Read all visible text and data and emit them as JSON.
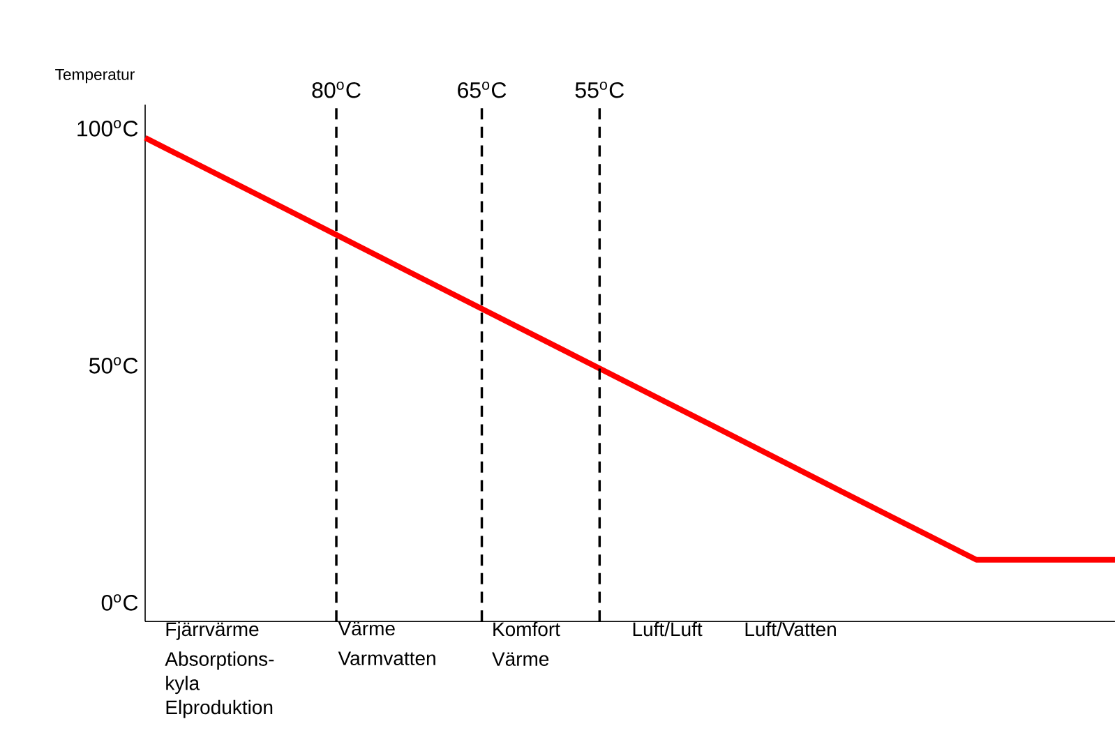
{
  "chart_data": {
    "type": "line",
    "ylabel": "Temperatur",
    "categories": [
      null,
      null,
      null,
      null,
      null,
      null,
      null,
      null
    ],
    "series": [
      {
        "color": "#ff0000",
        "values": [
          98,
          83.2,
          68.3,
          53.5,
          38.7,
          23.8,
          9,
          9
        ]
      }
    ],
    "ylim": [
      -4,
      105
    ],
    "yticks": [
      {
        "value": 0,
        "label": "0$^{o}$C"
      },
      {
        "value": 50,
        "label": "50$^{o}$C"
      },
      {
        "value": 100,
        "label": "100$^{o}$C"
      }
    ],
    "tick_labels": "y",
    "grid": false,
    "marker": "none",
    "line_style": "solid",
    "annotations": [
      "Fjärrvärme Absorptions-kyla Elproduktion",
      "Värme Varmvatten",
      "Komfort Värme",
      "Luft/Luft",
      "Luft/Vatten",
      "80$^{o}$C",
      "65$^{o}$C",
      "55$^{o}$C"
    ]
  }
}
